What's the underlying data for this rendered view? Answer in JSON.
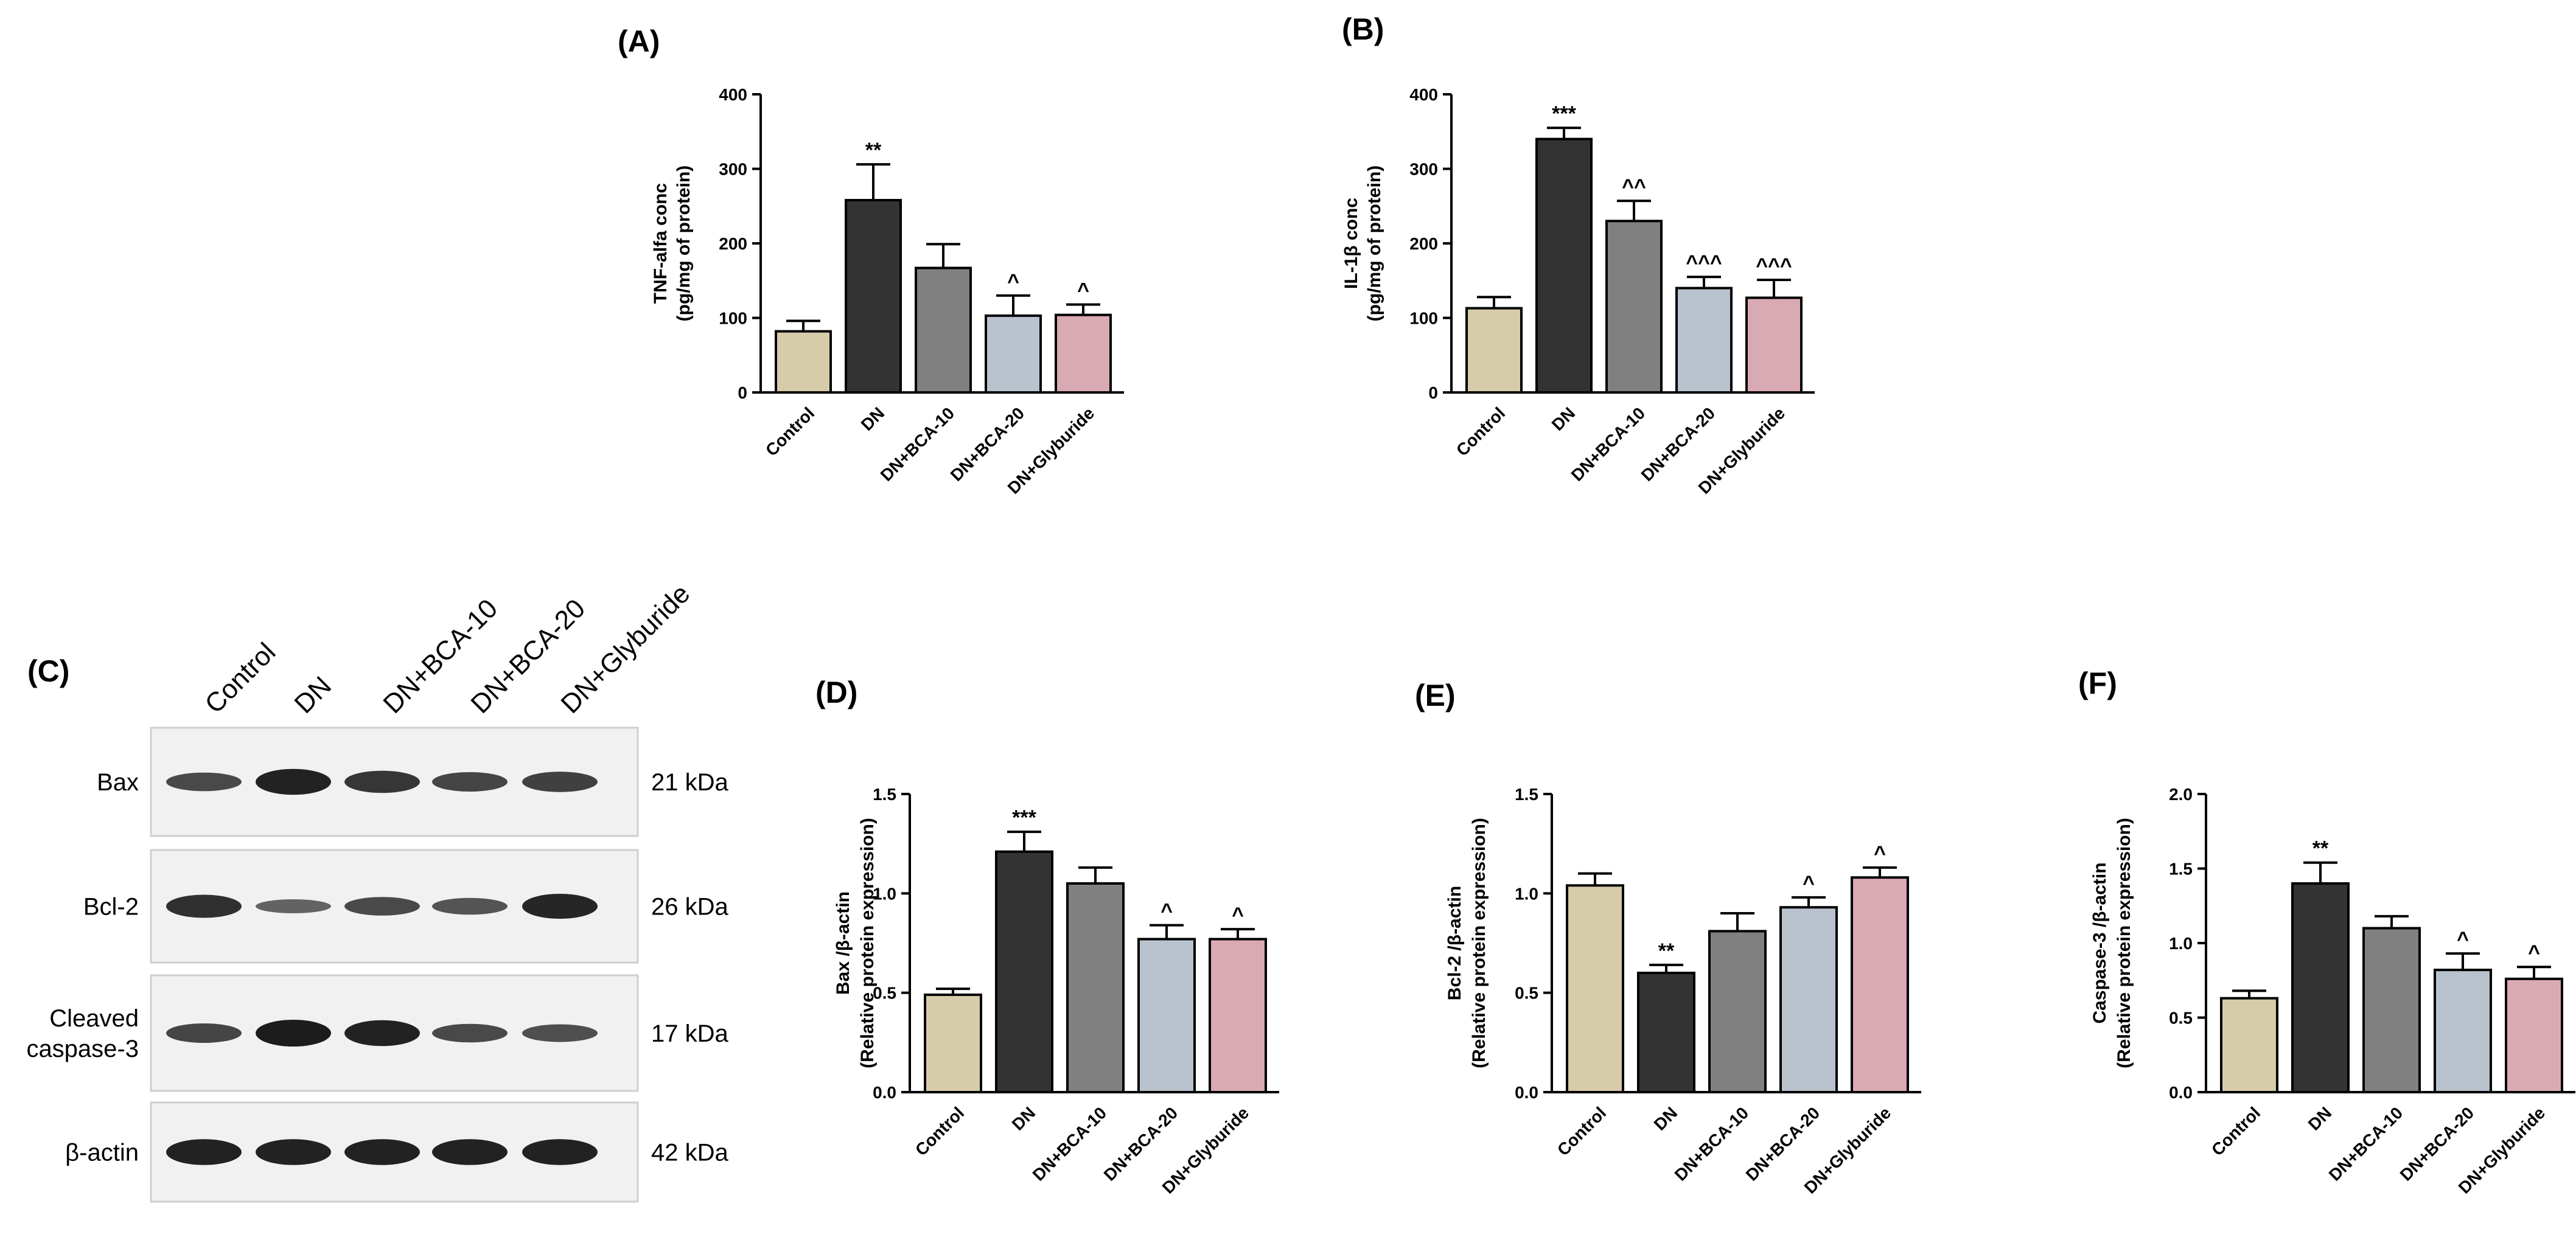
{
  "bar_colors": {
    "Control": "#d7ccaa",
    "DN": "#333333",
    "DN+BCA-10": "#808080",
    "DN+BCA-20": "#b8c3ce",
    "DN+Glyburide": "#d9aab4"
  },
  "chart_data": [
    {
      "panel": "(A)",
      "type": "bar",
      "categories": [
        "Control",
        "DN",
        "DN+BCA-10",
        "DN+BCA-20",
        "DN+Glyburide"
      ],
      "values": [
        82,
        258,
        167,
        103,
        104
      ],
      "errors": [
        14,
        48,
        32,
        27,
        14
      ],
      "significance": [
        "",
        "**",
        "",
        "^",
        "^"
      ],
      "ylabel_lines": [
        "TNF-alfa conc",
        "(pg/mg of protein)"
      ],
      "ylim": [
        0,
        400
      ],
      "yticks": [
        0,
        100,
        200,
        300,
        400
      ],
      "ytick_labels": [
        "0",
        "100",
        "200",
        "300",
        "400"
      ]
    },
    {
      "panel": "(B)",
      "type": "bar",
      "categories": [
        "Control",
        "DN",
        "DN+BCA-10",
        "DN+BCA-20",
        "DN+Glyburide"
      ],
      "values": [
        113,
        340,
        230,
        140,
        127
      ],
      "errors": [
        15,
        15,
        27,
        15,
        24
      ],
      "significance": [
        "",
        "***",
        "^^",
        "^^^",
        "^^^"
      ],
      "ylabel_lines": [
        "IL-1β conc",
        "(pg/mg of protein)"
      ],
      "ylim": [
        0,
        400
      ],
      "yticks": [
        0,
        100,
        200,
        300,
        400
      ],
      "ytick_labels": [
        "0",
        "100",
        "200",
        "300",
        "400"
      ]
    },
    {
      "panel": "(D)",
      "type": "bar",
      "categories": [
        "Control",
        "DN",
        "DN+BCA-10",
        "DN+BCA-20",
        "DN+Glyburide"
      ],
      "values": [
        0.49,
        1.21,
        1.05,
        0.77,
        0.77
      ],
      "errors": [
        0.03,
        0.1,
        0.08,
        0.07,
        0.05
      ],
      "significance": [
        "",
        "***",
        "",
        "^",
        "^"
      ],
      "ylabel_lines": [
        "Bax /β-actin",
        "(Relative protein expression)"
      ],
      "ylim": [
        0,
        1.5
      ],
      "yticks": [
        0,
        0.5,
        1.0,
        1.5
      ],
      "ytick_labels": [
        "0.0",
        "0.5",
        "1.0",
        "1.5"
      ]
    },
    {
      "panel": "(E)",
      "type": "bar",
      "categories": [
        "Control",
        "DN",
        "DN+BCA-10",
        "DN+BCA-20",
        "DN+Glyburide"
      ],
      "values": [
        1.04,
        0.6,
        0.81,
        0.93,
        1.08
      ],
      "errors": [
        0.06,
        0.04,
        0.09,
        0.05,
        0.05
      ],
      "significance": [
        "",
        "**",
        "",
        "^",
        "^"
      ],
      "ylabel_lines": [
        "Bcl-2 /β-actin",
        "(Relative protein expression)"
      ],
      "ylim": [
        0,
        1.5
      ],
      "yticks": [
        0,
        0.5,
        1.0,
        1.5
      ],
      "ytick_labels": [
        "0.0",
        "0.5",
        "1.0",
        "1.5"
      ]
    },
    {
      "panel": "(F)",
      "type": "bar",
      "categories": [
        "Control",
        "DN",
        "DN+BCA-10",
        "DN+BCA-20",
        "DN+Glyburide"
      ],
      "values": [
        0.63,
        1.4,
        1.1,
        0.82,
        0.76
      ],
      "errors": [
        0.05,
        0.14,
        0.08,
        0.11,
        0.08
      ],
      "significance": [
        "",
        "**",
        "",
        "^",
        "^"
      ],
      "ylabel_lines": [
        "Caspase-3 /β-actin",
        "(Relative protein expression)"
      ],
      "ylim": [
        0,
        2.0
      ],
      "yticks": [
        0,
        0.5,
        1.0,
        1.5,
        2.0
      ],
      "ytick_labels": [
        "0.0",
        "0.5",
        "1.0",
        "1.5",
        "2.0"
      ]
    }
  ],
  "western_blot": {
    "panel": "(C)",
    "lanes": [
      "Control",
      "DN",
      "DN+BCA-10",
      "DN+BCA-20",
      "DN+Glyburide"
    ],
    "rows": [
      {
        "label": [
          "Bax"
        ],
        "kda": "21 kDa",
        "intensity": [
          0.55,
          0.95,
          0.75,
          0.6,
          0.65
        ]
      },
      {
        "label": [
          "Bcl-2"
        ],
        "kda": "26 kDa",
        "intensity": [
          0.8,
          0.3,
          0.55,
          0.45,
          0.9
        ]
      },
      {
        "label": [
          "Cleaved",
          "caspase-3"
        ],
        "kda": "17 kDa",
        "intensity": [
          0.6,
          1.0,
          0.95,
          0.55,
          0.5
        ]
      },
      {
        "label": [
          "β-actin"
        ],
        "kda": "42 kDa",
        "intensity": [
          0.95,
          0.95,
          0.95,
          0.95,
          0.95
        ]
      }
    ]
  }
}
